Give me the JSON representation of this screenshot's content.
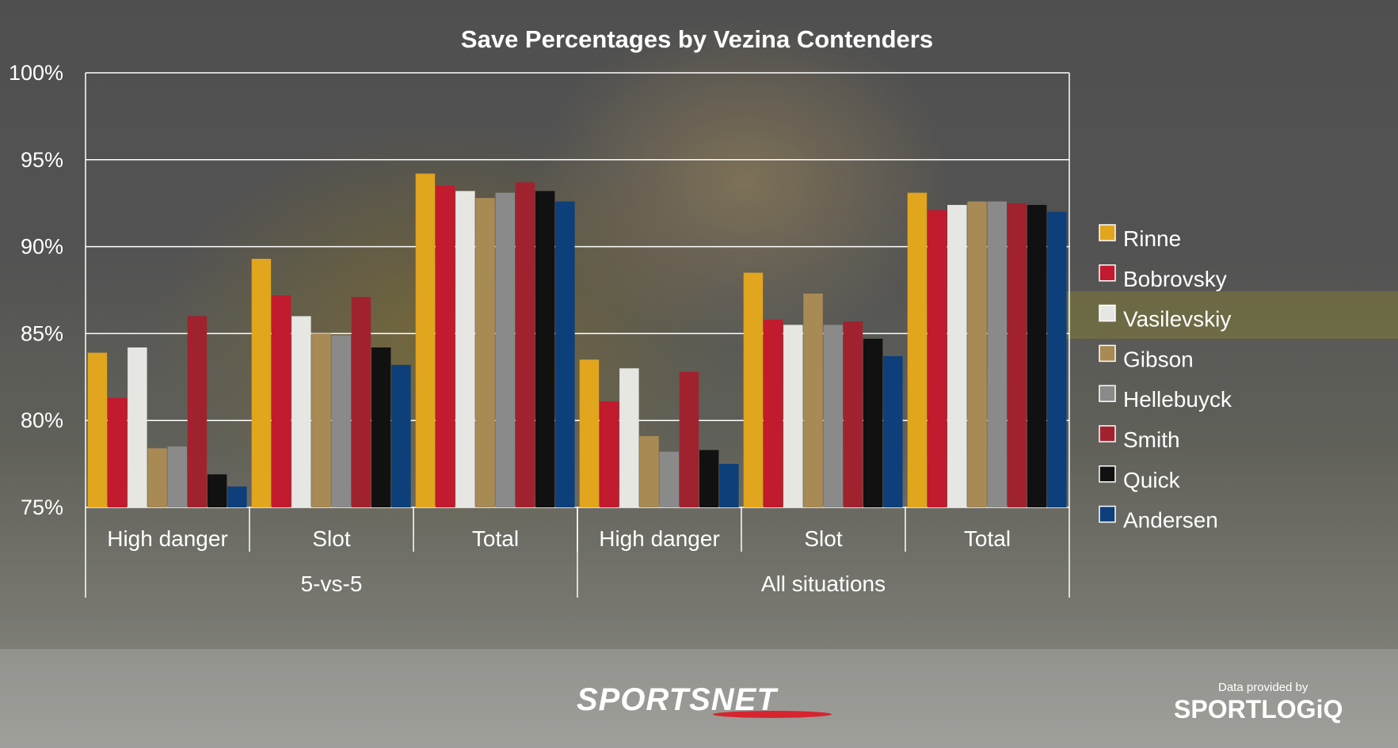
{
  "chart_data": {
    "type": "bar",
    "title": "Save Percentages by Vezina Contenders",
    "categories": [
      "High danger",
      "Slot",
      "Total",
      "High danger",
      "Slot",
      "Total"
    ],
    "groups": [
      {
        "label": "5-vs-5",
        "span": [
          0,
          2
        ]
      },
      {
        "label": "All situations",
        "span": [
          3,
          5
        ]
      }
    ],
    "ylim": [
      75,
      100
    ],
    "yticks": [
      75,
      80,
      85,
      90,
      95,
      100
    ],
    "ytick_labels": [
      "75%",
      "80%",
      "85%",
      "90%",
      "95%",
      "100%"
    ],
    "grid": true,
    "legend_position": "right",
    "series": [
      {
        "name": "Rinne",
        "color": "#e1a51e",
        "values": [
          83.9,
          89.3,
          94.2,
          83.5,
          88.5,
          93.1
        ]
      },
      {
        "name": "Bobrovsky",
        "color": "#c21a2e",
        "values": [
          81.3,
          87.2,
          93.5,
          81.1,
          85.8,
          92.1
        ]
      },
      {
        "name": "Vasilevskiy",
        "color": "#e6e6e2",
        "values": [
          84.2,
          86.0,
          93.2,
          83.0,
          85.5,
          92.4
        ]
      },
      {
        "name": "Gibson",
        "color": "#a88a55",
        "values": [
          78.4,
          85.0,
          92.8,
          79.1,
          87.3,
          92.6
        ]
      },
      {
        "name": "Hellebuyck",
        "color": "#8a8a8a",
        "values": [
          78.5,
          84.9,
          93.1,
          78.2,
          85.5,
          92.6
        ]
      },
      {
        "name": "Smith",
        "color": "#a0222e",
        "values": [
          86.0,
          87.1,
          93.7,
          82.8,
          85.7,
          92.5
        ]
      },
      {
        "name": "Quick",
        "color": "#111111",
        "values": [
          76.9,
          84.2,
          93.2,
          78.3,
          84.7,
          92.4
        ]
      },
      {
        "name": "Andersen",
        "color": "#0d3f7a",
        "values": [
          76.2,
          83.2,
          92.6,
          77.5,
          83.7,
          92.0
        ]
      }
    ]
  },
  "branding": {
    "broadcaster": "SPORTSNET",
    "provided_by": "Data provided by",
    "provider": "SPORTLOGiQ"
  }
}
